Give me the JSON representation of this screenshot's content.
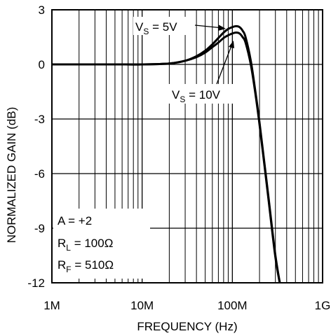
{
  "chart_data": {
    "type": "line",
    "title": "",
    "xlabel": "FREQUENCY (Hz)",
    "ylabel": "NORMALIZED GAIN (dB)",
    "x_scale": "log",
    "xlim": [
      1000000,
      1000000000
    ],
    "ylim": [
      -12,
      3
    ],
    "grid": true,
    "x_ticks": [
      {
        "value": 1000000,
        "label": "1M"
      },
      {
        "value": 10000000,
        "label": "10M"
      },
      {
        "value": 100000000,
        "label": "100M"
      },
      {
        "value": 1000000000,
        "label": "1G"
      }
    ],
    "y_ticks": [
      {
        "value": 3,
        "label": "3"
      },
      {
        "value": 0,
        "label": "0"
      },
      {
        "value": -3,
        "label": "-3"
      },
      {
        "value": -6,
        "label": "-6"
      },
      {
        "value": -9,
        "label": "-9"
      },
      {
        "value": -12,
        "label": "-12"
      }
    ],
    "series": [
      {
        "name": "VS = 5V",
        "x": [
          1000000,
          2000000,
          5000000,
          10000000,
          20000000,
          30000000,
          40000000,
          50000000,
          60000000,
          70000000,
          80000000,
          90000000,
          100000000,
          110000000,
          120000000,
          130000000,
          140000000,
          160000000,
          180000000,
          200000000,
          250000000,
          300000000,
          350000000
        ],
        "y": [
          0,
          0,
          0,
          0,
          0.05,
          0.2,
          0.45,
          0.75,
          1.1,
          1.45,
          1.75,
          1.95,
          2.05,
          2.1,
          2.05,
          1.85,
          1.5,
          0.2,
          -1.5,
          -3.2,
          -7.2,
          -10.5,
          -12.5
        ]
      },
      {
        "name": "VS = 10V",
        "x": [
          1000000,
          2000000,
          5000000,
          10000000,
          20000000,
          30000000,
          40000000,
          50000000,
          60000000,
          70000000,
          80000000,
          90000000,
          100000000,
          110000000,
          120000000,
          130000000,
          140000000,
          160000000,
          180000000,
          200000000,
          250000000,
          300000000,
          350000000
        ],
        "y": [
          0,
          0,
          0,
          0,
          0.05,
          0.2,
          0.4,
          0.65,
          0.95,
          1.2,
          1.45,
          1.6,
          1.7,
          1.75,
          1.7,
          1.5,
          1.2,
          0.0,
          -1.6,
          -3.3,
          -7.3,
          -10.6,
          -12.5
        ]
      }
    ],
    "annotations": {
      "vs5": {
        "main": "V",
        "sub": "S",
        "rest": " = 5V"
      },
      "vs10": {
        "main": "V",
        "sub": "S",
        "rest": " = 10V"
      },
      "conditions": {
        "line1": "A = +2",
        "rl_main": "R",
        "rl_sub": "L",
        "rl_rest": " = 100Ω",
        "rf_main": "R",
        "rf_sub": "F",
        "rf_rest": " = 510Ω"
      }
    }
  }
}
